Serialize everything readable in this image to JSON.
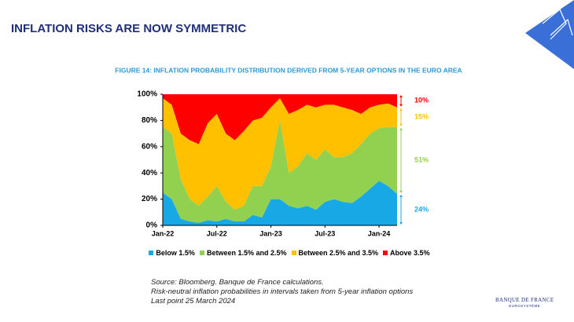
{
  "slide": {
    "title": "INFLATION RISKS ARE NOW SYMMETRIC",
    "source": [
      "Source: Bloomberg. Banque de France calculations.",
      "Risk-neutral inflation probabilities in intervals taken from 5-year inflation options",
      "Last point 25 March 2024"
    ],
    "logo": "BANQUE DE FRANCE",
    "logo_sub": "EUROSYSTÈME"
  },
  "chart_data": {
    "type": "stacked-area",
    "title": "FIGURE 14: INFLATION PROBABILITY DISTRIBUTION DERIVED FROM 5-YEAR OPTIONS IN THE EURO AREA",
    "categories": [
      "Jan-22",
      null,
      null,
      null,
      null,
      null,
      "Jul-22",
      null,
      null,
      null,
      null,
      null,
      "Jan-23",
      null,
      null,
      null,
      null,
      null,
      "Jul-23",
      null,
      null,
      null,
      null,
      null,
      "Jan-24",
      null,
      null
    ],
    "ylim": [
      0,
      100
    ],
    "yticks": [
      {
        "value": 0,
        "label": "0%"
      },
      {
        "value": 20,
        "label": "20%"
      },
      {
        "value": 40,
        "label": "40%"
      },
      {
        "value": 60,
        "label": "60%"
      },
      {
        "value": 80,
        "label": "80%"
      },
      {
        "value": 100,
        "label": "100%"
      }
    ],
    "series": [
      {
        "name": "Below 1.5%",
        "color": "#19a8e6",
        "end_label": "24%",
        "values": [
          25,
          20,
          5,
          3,
          2,
          4,
          3,
          5,
          3,
          3,
          8,
          6,
          20,
          20,
          15,
          13,
          15,
          12,
          18,
          20,
          18,
          17,
          22,
          28,
          34,
          30,
          24
        ]
      },
      {
        "name": "Between 1.5% and 2.5%",
        "color": "#92d050",
        "end_label": "51%",
        "values": [
          50,
          50,
          30,
          17,
          13,
          18,
          27,
          13,
          9,
          12,
          22,
          24,
          25,
          60,
          25,
          32,
          40,
          38,
          40,
          32,
          34,
          38,
          40,
          42,
          40,
          45,
          51
        ]
      },
      {
        "name": "Between 2.5% and 3.5%",
        "color": "#ffc000",
        "end_label": "15%",
        "values": [
          22,
          22,
          35,
          45,
          47,
          56,
          55,
          52,
          53,
          57,
          50,
          52,
          45,
          17,
          45,
          43,
          37,
          40,
          34,
          40,
          38,
          33,
          23,
          20,
          18,
          18,
          15
        ]
      },
      {
        "name": "Above 3.5%",
        "color": "#ff0000",
        "end_label": "10%",
        "values": [
          3,
          8,
          30,
          35,
          38,
          22,
          15,
          30,
          35,
          28,
          20,
          18,
          10,
          3,
          15,
          12,
          8,
          10,
          8,
          8,
          10,
          12,
          15,
          10,
          8,
          7,
          10
        ]
      }
    ]
  }
}
